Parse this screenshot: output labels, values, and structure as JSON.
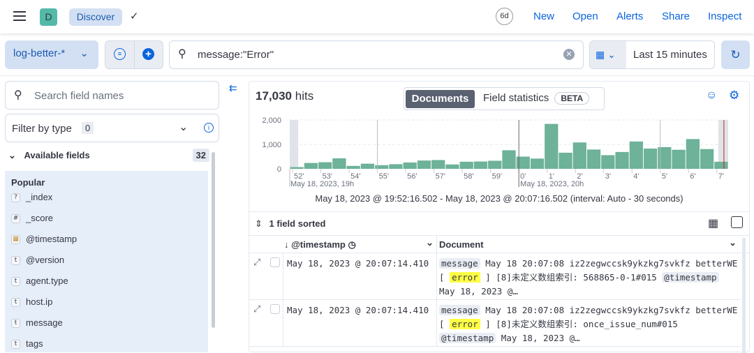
{
  "header": {
    "avatar": "D",
    "app": "Discover",
    "links": [
      "New",
      "Open",
      "Alerts",
      "Share",
      "Inspect"
    ]
  },
  "toolbar": {
    "data_view": "log-better-*",
    "query": "message:\"Error\"",
    "time_range": "Last 15 minutes"
  },
  "sidebar": {
    "search_placeholder": "Search field names",
    "filter_label": "Filter by type",
    "filter_count": "0",
    "available_label": "Available fields",
    "available_count": "32",
    "popular_label": "Popular",
    "fields": [
      {
        "type": "?",
        "name": "_index"
      },
      {
        "type": "#",
        "name": "_score"
      },
      {
        "type": "cal",
        "name": "@timestamp"
      },
      {
        "type": "t",
        "name": "@version"
      },
      {
        "type": "t",
        "name": "agent.type"
      },
      {
        "type": "t",
        "name": "host.ip"
      },
      {
        "type": "t",
        "name": "message"
      },
      {
        "type": "t",
        "name": "tags"
      }
    ]
  },
  "main": {
    "hits_count": "17,030",
    "hits_label": "hits",
    "tab_documents": "Documents",
    "tab_field_stats": "Field statistics",
    "beta": "BETA",
    "time_caption": "May 18, 2023 @ 19:52:16.502 - May 18, 2023 @ 20:07:16.502 (interval: Auto - 30 seconds)",
    "sorted": "1 field sorted",
    "col_timestamp": "@timestamp",
    "col_document": "Document",
    "rows": [
      {
        "ts": "May 18, 2023 @ 20:07:14.410",
        "k1": "message",
        "l1": "May 18 20:07:08 iz2zegwccsk9ykzkg7svkfz betterWE",
        "pre": "[ ",
        "hl": "error",
        "post": " ] [8]未定义数组索引: 568865-0-1#015 ",
        "k2": "@timestamp",
        "l3": "May 18, 2023 @…"
      },
      {
        "ts": "May 18, 2023 @ 20:07:14.410",
        "k1": "message",
        "l1": "May 18 20:07:08 iz2zegwccsk9ykzkg7svkfz betterWE",
        "pre": "[ ",
        "hl": "error",
        "post": " ] [8]未定义数组索引: once_issue_num#015 ",
        "k2": "@timestamp",
        "l3": "May 18, 2023 @…"
      }
    ]
  },
  "chart_data": {
    "type": "bar",
    "ylim": [
      0,
      2000
    ],
    "yticks": [
      "2,000",
      "1,000",
      "0"
    ],
    "xticks": [
      "52'",
      "53'",
      "54'",
      "55'",
      "56'",
      "57'",
      "58'",
      "59'",
      "0'",
      "1'",
      "2'",
      "3'",
      "4'",
      "5'",
      "6'",
      "7'"
    ],
    "xsub": [
      "May 18, 2023, 19h",
      "May 18, 2023, 20h"
    ],
    "values": [
      70,
      240,
      270,
      430,
      120,
      210,
      150,
      190,
      260,
      340,
      360,
      180,
      290,
      300,
      330,
      760,
      500,
      420,
      1840,
      660,
      1080,
      790,
      560,
      690,
      1120,
      830,
      890,
      780,
      1220,
      810,
      290
    ],
    "color": "#6db299"
  }
}
